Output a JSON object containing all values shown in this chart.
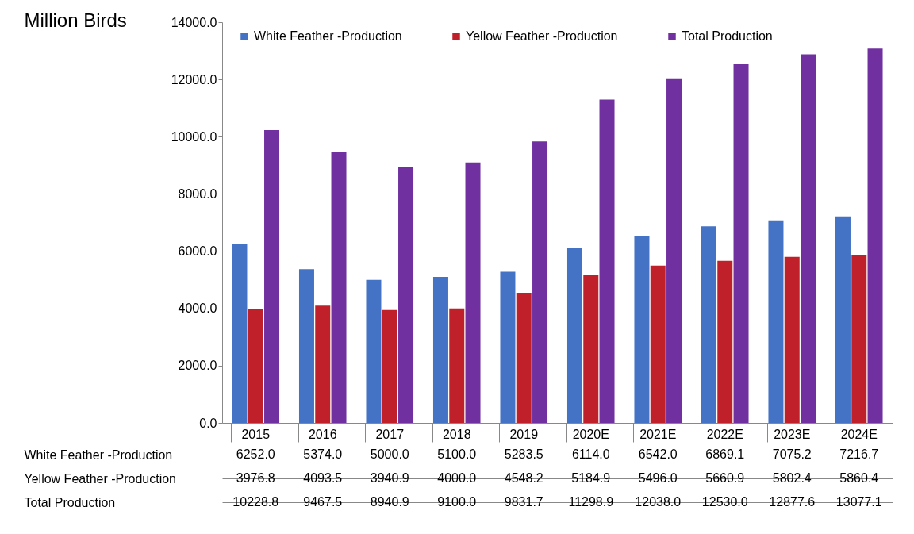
{
  "chart_data": {
    "type": "bar",
    "ylabel": "Million Birds",
    "categories": [
      "2015",
      "2016",
      "2017",
      "2018",
      "2019",
      "2020E",
      "2021E",
      "2022E",
      "2023E",
      "2024E"
    ],
    "series": [
      {
        "name": "White Feather -Production",
        "color": "#4472c4",
        "values": [
          6252.0,
          5374.0,
          5000.0,
          5100.0,
          5283.5,
          6114.0,
          6542.0,
          6869.1,
          7075.2,
          7216.7
        ],
        "value_labels": [
          "6252.0",
          "5374.0",
          "5000.0",
          "5100.0",
          "5283.5",
          "6114.0",
          "6542.0",
          "6869.1",
          "7075.2",
          "7216.7"
        ]
      },
      {
        "name": "Yellow Feather -Production",
        "color": "#c0202a",
        "values": [
          3976.8,
          4093.5,
          3940.9,
          4000.0,
          4548.2,
          5184.9,
          5496.0,
          5660.9,
          5802.4,
          5860.4
        ],
        "value_labels": [
          "3976.8",
          "4093.5",
          "3940.9",
          "4000.0",
          "4548.2",
          "5184.9",
          "5496.0",
          "5660.9",
          "5802.4",
          "5860.4"
        ]
      },
      {
        "name": "Total Production",
        "color": "#7030a0",
        "values": [
          10228.8,
          9467.5,
          8940.9,
          9100.0,
          9831.7,
          11298.9,
          12038.0,
          12530.0,
          12877.6,
          13077.1
        ],
        "value_labels": [
          "10228.8",
          "9467.5",
          "8940.9",
          "9100.0",
          "9831.7",
          "11298.9",
          "12038.0",
          "12530.0",
          "12877.6",
          "13077.1"
        ]
      }
    ],
    "ylim": [
      0,
      14000
    ],
    "yticks": [
      {
        "value": 0,
        "label": "0.0"
      },
      {
        "value": 2000,
        "label": "2000.0"
      },
      {
        "value": 4000,
        "label": "4000.0"
      },
      {
        "value": 6000,
        "label": "6000.0"
      },
      {
        "value": 8000,
        "label": "8000.0"
      },
      {
        "value": 10000,
        "label": "10000.0"
      },
      {
        "value": 12000,
        "label": "12000.0"
      },
      {
        "value": 14000,
        "label": "14000.0"
      }
    ],
    "grid": false,
    "legend": "top"
  }
}
